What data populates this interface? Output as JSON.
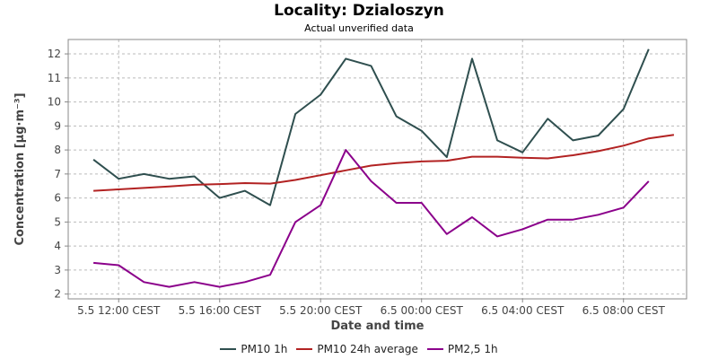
{
  "chart_data": {
    "type": "line",
    "title": "Locality: Dzialoszyn",
    "subtitle": "Actual unverified data",
    "xlabel": "Date and time",
    "ylabel": "Concentration [μg·m⁻³]",
    "ylim": [
      1.8,
      12.6
    ],
    "yticks": [
      2,
      3,
      4,
      5,
      6,
      7,
      8,
      9,
      10,
      11,
      12
    ],
    "xlim": [
      "5.5 10:00",
      "6.5 10:30"
    ],
    "x": [
      "5.5 11:00",
      "5.5 12:00",
      "5.5 13:00",
      "5.5 14:00",
      "5.5 15:00",
      "5.5 16:00",
      "5.5 17:00",
      "5.5 18:00",
      "5.5 19:00",
      "5.5 20:00",
      "5.5 21:00",
      "5.5 22:00",
      "5.5 23:00",
      "6.5 00:00",
      "6.5 01:00",
      "6.5 02:00",
      "6.5 03:00",
      "6.5 04:00",
      "6.5 05:00",
      "6.5 06:00",
      "6.5 07:00",
      "6.5 08:00",
      "6.5 09:00",
      "6.5 10:00"
    ],
    "xticks": [
      "5.5 12:00 CEST",
      "5.5 16:00 CEST",
      "5.5 20:00 CEST",
      "6.5 00:00 CEST",
      "6.5 04:00 CEST",
      "6.5 08:00 CEST"
    ],
    "grid": true,
    "legend_position": "bottom",
    "series": [
      {
        "name": "PM10 1h",
        "color": "#2f4f4f",
        "values": [
          7.6,
          6.8,
          7.0,
          6.8,
          6.9,
          6.0,
          6.3,
          5.7,
          9.5,
          10.3,
          11.8,
          11.5,
          9.4,
          8.8,
          7.7,
          11.8,
          8.4,
          7.9,
          9.3,
          8.4,
          8.6,
          9.7,
          12.2,
          null
        ]
      },
      {
        "name": "PM10 24h average",
        "color": "#b22222",
        "values": [
          6.3,
          6.36,
          6.42,
          6.48,
          6.55,
          6.58,
          6.62,
          6.6,
          6.75,
          6.95,
          7.15,
          7.35,
          7.45,
          7.52,
          7.55,
          7.72,
          7.72,
          7.68,
          7.65,
          7.78,
          7.95,
          8.18,
          8.48,
          8.63
        ]
      },
      {
        "name": "PM2,5 1h",
        "color": "#8b008b",
        "values": [
          3.3,
          3.2,
          2.5,
          2.3,
          2.5,
          2.3,
          2.5,
          2.8,
          5.0,
          5.7,
          8.0,
          6.7,
          5.8,
          5.8,
          4.5,
          5.2,
          4.4,
          4.7,
          5.1,
          5.1,
          5.3,
          5.6,
          6.7,
          null
        ]
      }
    ]
  }
}
